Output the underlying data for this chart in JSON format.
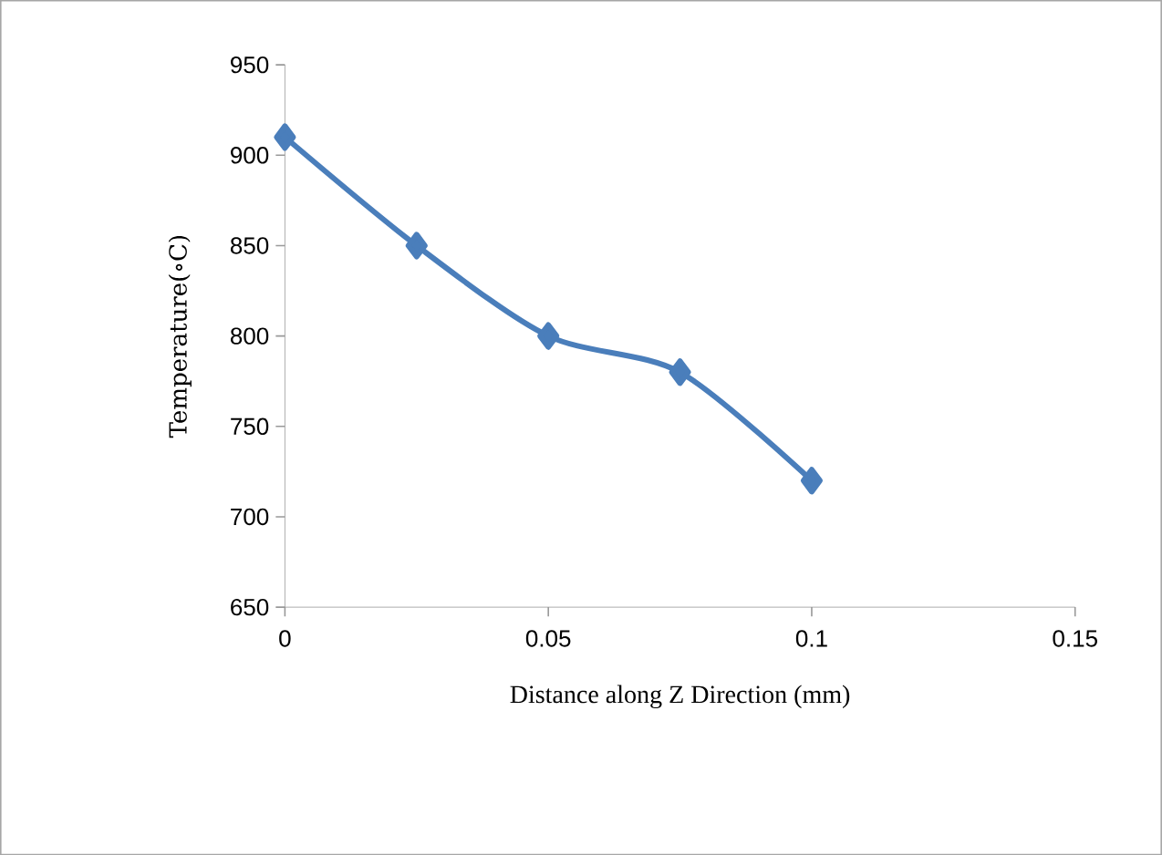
{
  "chart_data": {
    "type": "line",
    "xlabel": "Distance along Z Direction (mm)",
    "ylabel": "Temperature(∘C)",
    "x": [
      0,
      0.025,
      0.05,
      0.075,
      0.1
    ],
    "series": [
      {
        "color": "#4a7ebb",
        "values": [
          910,
          850,
          800,
          780,
          720
        ]
      }
    ],
    "xlim": [
      0,
      0.15
    ],
    "xticks": [
      0,
      0.05,
      0.1,
      0.15
    ],
    "ylim": [
      650,
      950
    ],
    "yticks": [
      650,
      700,
      750,
      800,
      850,
      900,
      950
    ],
    "grid": false,
    "marker": "diamond",
    "line_style": "solid"
  }
}
